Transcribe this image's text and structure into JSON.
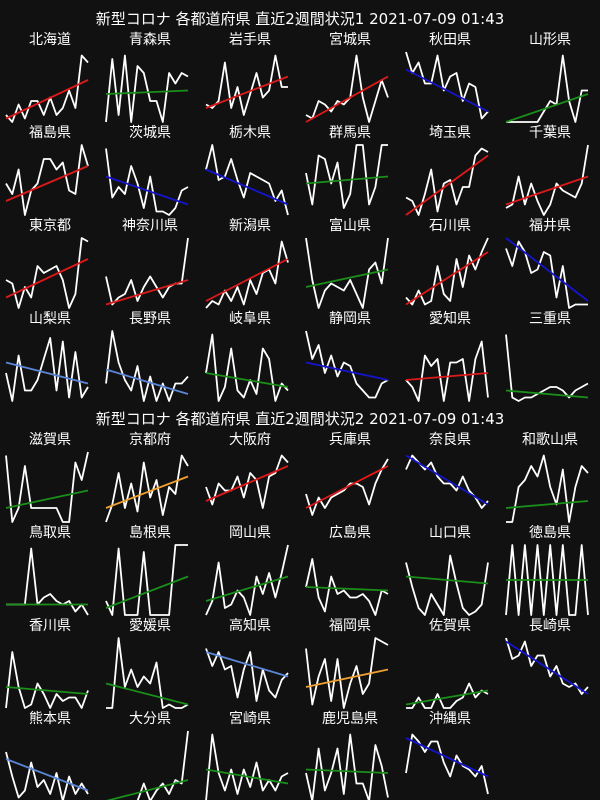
{
  "sections": [
    {
      "title": "新型コロナ 各都道府県 直近2週間状況1  2021-07-09 01:43"
    },
    {
      "title": "新型コロナ 各都道府県 直近2週間状況2  2021-07-09 01:43"
    }
  ],
  "colors": {
    "background": "#111111",
    "line": "#ffffff",
    "red": "#dd1a1a",
    "green": "#1a8f1a",
    "blue": "#1414cc",
    "lightblue": "#5b86d6",
    "orange": "#f0a030"
  },
  "chart_data": {
    "type": "line",
    "title": "",
    "xlabel": "",
    "ylabel": "",
    "grid": false,
    "legend": "none",
    "x": [
      1,
      2,
      3,
      4,
      5,
      6,
      7,
      8,
      9,
      10,
      11,
      12,
      13,
      14
    ],
    "panels": [
      {
        "name": "北海道",
        "trend": "red",
        "values": [
          0.1,
          0.0,
          0.25,
          0.05,
          0.3,
          0.3,
          0.1,
          0.35,
          0.1,
          0.2,
          0.45,
          0.2,
          0.95,
          0.85
        ],
        "trend_line": [
          0.05,
          0.6
        ]
      },
      {
        "name": "青森県",
        "trend": "green",
        "values": [
          0.0,
          0.9,
          0.1,
          0.95,
          0.0,
          0.8,
          0.7,
          0.3,
          0.3,
          0.0,
          0.7,
          0.55,
          0.7,
          0.65
        ],
        "trend_line": [
          0.4,
          0.45
        ]
      },
      {
        "name": "岩手県",
        "trend": "red",
        "values": [
          0.25,
          0.2,
          0.3,
          0.85,
          0.2,
          0.5,
          0.1,
          0.4,
          0.7,
          0.35,
          0.45,
          0.95,
          0.5,
          0.5
        ],
        "trend_line": [
          0.2,
          0.65
        ]
      },
      {
        "name": "宮城県",
        "trend": "red",
        "values": [
          0.1,
          0.05,
          0.3,
          0.25,
          0.15,
          0.3,
          0.25,
          0.35,
          0.95,
          0.35,
          0.0,
          0.3,
          0.6,
          0.35
        ],
        "trend_line": [
          0.0,
          0.65
        ]
      },
      {
        "name": "秋田県",
        "trend": "blue",
        "values": [
          1.0,
          0.7,
          0.85,
          0.55,
          0.55,
          0.95,
          0.45,
          0.65,
          0.7,
          0.3,
          0.55,
          0.5,
          0.05,
          0.15
        ],
        "trend_line": [
          0.75,
          0.15
        ]
      },
      {
        "name": "山形県",
        "trend": "green",
        "values": [
          0.0,
          0.0,
          0.0,
          0.0,
          0.0,
          0.0,
          0.15,
          0.3,
          0.25,
          0.95,
          0.3,
          0.0,
          0.45,
          0.45
        ],
        "trend_line": [
          0.0,
          0.4
        ]
      },
      {
        "name": "福島県",
        "trend": "red",
        "values": [
          0.45,
          0.3,
          0.65,
          0.0,
          0.35,
          0.45,
          0.8,
          0.8,
          0.65,
          0.75,
          0.35,
          0.3,
          1.0,
          0.7
        ],
        "trend_line": [
          0.2,
          0.7
        ]
      },
      {
        "name": "茨城県",
        "trend": "blue",
        "values": [
          0.95,
          0.25,
          0.4,
          0.3,
          0.7,
          0.45,
          0.1,
          0.55,
          0.05,
          0.05,
          0.0,
          0.1,
          0.35,
          0.4
        ],
        "trend_line": [
          0.55,
          0.15
        ]
      },
      {
        "name": "栃木県",
        "trend": "blue",
        "values": [
          0.65,
          1.0,
          0.5,
          0.55,
          0.8,
          0.5,
          0.25,
          0.6,
          0.55,
          0.5,
          0.45,
          0.2,
          0.35,
          0.0
        ],
        "trend_line": [
          0.65,
          0.15
        ]
      },
      {
        "name": "群馬県",
        "trend": "green",
        "values": [
          0.6,
          0.15,
          0.85,
          0.8,
          0.45,
          0.75,
          0.1,
          0.3,
          1.0,
          1.0,
          0.15,
          0.4,
          1.0,
          1.0
        ],
        "trend_line": [
          0.45,
          0.55
        ]
      },
      {
        "name": "埼玉県",
        "trend": "red",
        "values": [
          0.25,
          0.2,
          0.0,
          0.3,
          0.65,
          0.05,
          0.45,
          0.5,
          0.15,
          0.4,
          0.4,
          0.85,
          0.95,
          0.9
        ],
        "trend_line": [
          0.0,
          0.85
        ]
      },
      {
        "name": "千葉県",
        "trend": "red",
        "values": [
          0.1,
          0.15,
          0.55,
          0.15,
          0.45,
          0.2,
          0.0,
          0.15,
          0.45,
          0.35,
          0.3,
          0.25,
          0.45,
          1.0
        ],
        "trend_line": [
          0.15,
          0.55
        ]
      },
      {
        "name": "東京都",
        "trend": "red",
        "values": [
          0.4,
          0.35,
          0.0,
          0.3,
          0.15,
          0.6,
          0.5,
          0.55,
          0.6,
          0.4,
          0.0,
          0.2,
          1.0,
          0.95
        ],
        "trend_line": [
          0.15,
          0.7
        ]
      },
      {
        "name": "神奈川県",
        "trend": "red",
        "values": [
          0.45,
          0.05,
          0.15,
          0.2,
          0.4,
          0.1,
          0.3,
          0.45,
          0.3,
          0.15,
          0.3,
          0.35,
          0.35,
          1.0
        ],
        "trend_line": [
          0.05,
          0.4
        ]
      },
      {
        "name": "新潟県",
        "trend": "red",
        "values": [
          0.0,
          0.1,
          0.05,
          0.25,
          0.1,
          0.3,
          0.05,
          0.4,
          0.2,
          0.5,
          0.55,
          0.35,
          0.95,
          0.65
        ],
        "trend_line": [
          0.1,
          0.7
        ]
      },
      {
        "name": "富山県",
        "trend": "green",
        "values": [
          1.0,
          0.4,
          0.0,
          0.25,
          0.35,
          0.3,
          0.25,
          0.4,
          0.2,
          0.0,
          0.55,
          0.65,
          0.35,
          1.0
        ],
        "trend_line": [
          0.3,
          0.55
        ]
      },
      {
        "name": "石川県",
        "trend": "red",
        "values": [
          0.15,
          0.05,
          0.25,
          0.05,
          0.1,
          0.6,
          0.2,
          0.1,
          0.7,
          0.3,
          0.75,
          0.55,
          0.8,
          1.0
        ],
        "trend_line": [
          0.05,
          0.8
        ]
      },
      {
        "name": "福井県",
        "trend": "blue",
        "values": [
          0.85,
          0.6,
          0.95,
          0.8,
          0.5,
          0.55,
          0.8,
          0.75,
          0.15,
          0.6,
          0.0,
          0.05,
          0.05,
          0.05
        ],
        "trend_line": [
          1.0,
          0.1
        ]
      },
      {
        "name": "山梨県",
        "trend": "lightblue",
        "values": [
          0.4,
          0.0,
          0.65,
          0.15,
          0.15,
          0.3,
          0.6,
          0.9,
          0.15,
          0.85,
          0.05,
          0.7,
          0.05,
          0.2
        ],
        "trend_line": [
          0.55,
          0.25
        ]
      },
      {
        "name": "長野県",
        "trend": "lightblue",
        "values": [
          0.25,
          1.0,
          0.55,
          0.3,
          0.15,
          0.5,
          0.0,
          0.35,
          0.0,
          0.25,
          0.0,
          0.25,
          0.25,
          0.35
        ],
        "trend_line": [
          0.45,
          0.1
        ]
      },
      {
        "name": "岐阜県",
        "trend": "green",
        "values": [
          0.4,
          0.95,
          0.0,
          0.2,
          0.75,
          0.15,
          0.05,
          0.3,
          0.1,
          0.75,
          0.6,
          0.0,
          0.25,
          0.15
        ],
        "trend_line": [
          0.4,
          0.2
        ]
      },
      {
        "name": "静岡県",
        "trend": "blue",
        "values": [
          1.0,
          0.6,
          0.8,
          0.4,
          0.65,
          0.35,
          0.55,
          0.5,
          0.25,
          0.15,
          0.05,
          0.05,
          0.25,
          0.3
        ],
        "trend_line": [
          0.55,
          0.3
        ]
      },
      {
        "name": "愛知県",
        "trend": "red",
        "values": [
          0.3,
          0.2,
          0.0,
          0.65,
          0.5,
          0.6,
          0.0,
          0.55,
          0.55,
          0.6,
          0.0,
          0.6,
          0.85,
          0.05
        ],
        "trend_line": [
          0.3,
          0.4
        ]
      },
      {
        "name": "三重県",
        "trend": "green",
        "values": [
          0.95,
          0.05,
          0.0,
          0.05,
          0.05,
          0.1,
          0.15,
          0.2,
          0.2,
          0.15,
          0.05,
          0.15,
          0.2,
          0.25
        ],
        "trend_line": [
          0.15,
          0.05
        ]
      },
      {
        "name": "滋賀県",
        "trend": "green",
        "values": [
          0.95,
          0.0,
          0.2,
          0.8,
          0.2,
          0.2,
          0.2,
          0.2,
          0.2,
          0.0,
          0.0,
          0.85,
          0.6,
          1.0
        ],
        "trend_line": [
          0.2,
          0.45
        ]
      },
      {
        "name": "京都府",
        "trend": "orange",
        "values": [
          0.0,
          0.25,
          0.7,
          0.2,
          0.55,
          0.15,
          0.85,
          0.35,
          0.6,
          0.1,
          0.5,
          0.4,
          0.95,
          0.8
        ],
        "trend_line": [
          0.2,
          0.65
        ]
      },
      {
        "name": "大阪府",
        "trend": "red",
        "values": [
          0.5,
          0.25,
          0.55,
          0.45,
          0.45,
          0.65,
          0.35,
          0.7,
          0.6,
          0.2,
          0.65,
          0.7,
          0.95,
          0.85
        ],
        "trend_line": [
          0.3,
          0.8
        ]
      },
      {
        "name": "兵庫県",
        "trend": "red",
        "values": [
          0.4,
          0.1,
          0.35,
          0.2,
          0.35,
          0.4,
          0.45,
          0.55,
          0.55,
          0.5,
          0.25,
          0.55,
          0.75,
          0.9
        ],
        "trend_line": [
          0.2,
          0.8
        ]
      },
      {
        "name": "奈良県",
        "trend": "blue",
        "values": [
          0.75,
          0.95,
          0.85,
          0.75,
          0.85,
          0.65,
          0.55,
          0.55,
          0.45,
          0.65,
          0.45,
          0.35,
          0.2,
          0.3
        ],
        "trend_line": [
          0.95,
          0.25
        ]
      },
      {
        "name": "和歌山県",
        "trend": "green",
        "values": [
          0.0,
          0.0,
          0.5,
          0.6,
          0.8,
          0.65,
          0.95,
          0.5,
          0.25,
          0.75,
          0.0,
          0.5,
          0.8,
          0.7
        ],
        "trend_line": [
          0.2,
          0.3
        ]
      },
      {
        "name": "鳥取県",
        "trend": "green",
        "values": [
          0.15,
          0.15,
          0.15,
          0.15,
          0.95,
          0.15,
          0.25,
          0.3,
          0.2,
          0.15,
          0.2,
          0.05,
          0.15,
          0.0
        ],
        "trend_line": [
          0.15,
          0.15
        ]
      },
      {
        "name": "島根県",
        "trend": "green",
        "values": [
          0.2,
          0.0,
          0.95,
          0.0,
          0.0,
          0.0,
          0.9,
          0.0,
          0.0,
          0.0,
          0.0,
          1.0,
          1.0,
          1.0
        ],
        "trend_line": [
          0.1,
          0.55
        ]
      },
      {
        "name": "岡山県",
        "trend": "green",
        "values": [
          0.0,
          0.2,
          0.75,
          0.1,
          0.15,
          0.35,
          0.25,
          0.0,
          0.55,
          0.3,
          0.6,
          0.25,
          0.6,
          1.0
        ],
        "trend_line": [
          0.2,
          0.55
        ]
      },
      {
        "name": "広島県",
        "trend": "green",
        "values": [
          0.4,
          0.8,
          0.25,
          0.05,
          0.55,
          0.3,
          0.35,
          0.25,
          0.25,
          0.3,
          0.2,
          0.0,
          0.35,
          0.3
        ],
        "trend_line": [
          0.4,
          0.35
        ]
      },
      {
        "name": "山口県",
        "trend": "green",
        "values": [
          0.75,
          0.4,
          0.1,
          0.0,
          0.3,
          0.15,
          0.0,
          0.85,
          0.45,
          0.1,
          0.0,
          0.05,
          0.15,
          0.75
        ],
        "trend_line": [
          0.55,
          0.45
        ]
      },
      {
        "name": "徳島県",
        "trend": "green",
        "values": [
          0.0,
          1.0,
          0.0,
          1.0,
          0.0,
          1.0,
          0.0,
          1.0,
          0.0,
          1.0,
          0.0,
          0.0,
          1.0,
          0.0
        ],
        "trend_line": [
          0.5,
          0.5
        ]
      },
      {
        "name": "香川県",
        "trend": "green",
        "values": [
          0.0,
          0.8,
          0.3,
          0.0,
          0.05,
          0.35,
          0.2,
          0.0,
          0.2,
          0.1,
          0.15,
          0.15,
          0.0,
          0.25
        ],
        "trend_line": [
          0.3,
          0.2
        ]
      },
      {
        "name": "愛媛県",
        "trend": "green",
        "values": [
          0.0,
          0.0,
          1.0,
          0.3,
          0.55,
          0.3,
          0.45,
          0.35,
          0.65,
          0.0,
          0.05,
          0.0,
          0.0,
          0.05
        ],
        "trend_line": [
          0.35,
          0.05
        ]
      },
      {
        "name": "高知県",
        "trend": "lightblue",
        "values": [
          0.85,
          0.6,
          0.8,
          0.55,
          0.6,
          0.15,
          0.55,
          0.8,
          0.1,
          0.55,
          0.25,
          0.15,
          0.4,
          0.5
        ],
        "trend_line": [
          0.8,
          0.45
        ]
      },
      {
        "name": "福岡県",
        "trend": "orange",
        "values": [
          0.85,
          0.05,
          0.45,
          0.7,
          0.1,
          0.7,
          0.0,
          0.35,
          0.6,
          0.2,
          0.35,
          1.0,
          0.95,
          0.9
        ],
        "trend_line": [
          0.3,
          0.55
        ]
      },
      {
        "name": "佐賀県",
        "trend": "green",
        "values": [
          0.0,
          0.0,
          0.15,
          0.0,
          0.0,
          0.2,
          0.0,
          0.0,
          0.1,
          0.15,
          0.35,
          0.15,
          0.25,
          0.2
        ],
        "trend_line": [
          0.05,
          0.25
        ]
      },
      {
        "name": "長崎県",
        "trend": "blue",
        "values": [
          1.0,
          0.7,
          0.75,
          0.95,
          0.6,
          0.75,
          0.75,
          0.45,
          0.6,
          0.35,
          0.3,
          0.35,
          0.2,
          0.3
        ],
        "trend_line": [
          0.95,
          0.2
        ]
      },
      {
        "name": "熊本県",
        "trend": "lightblue",
        "values": [
          0.7,
          0.35,
          0.05,
          0.15,
          0.55,
          0.2,
          0.3,
          0.1,
          0.4,
          0.0,
          0.35,
          0.1,
          0.25,
          0.1
        ],
        "trend_line": [
          0.6,
          0.15
        ]
      },
      {
        "name": "大分県",
        "trend": "green",
        "values": [
          0.0,
          0.0,
          0.0,
          0.0,
          0.0,
          0.0,
          0.25,
          0.0,
          0.15,
          0.25,
          0.1,
          0.3,
          0.25,
          1.0
        ],
        "trend_line": [
          0.0,
          0.3
        ]
      },
      {
        "name": "宮崎県",
        "trend": "green",
        "values": [
          0.0,
          0.95,
          0.4,
          0.15,
          0.45,
          0.1,
          0.45,
          0.2,
          0.55,
          0.15,
          0.3,
          0.15,
          0.35,
          0.4
        ],
        "trend_line": [
          0.45,
          0.25
        ]
      },
      {
        "name": "鹿児島県",
        "trend": "green",
        "values": [
          0.4,
          0.0,
          0.75,
          0.15,
          0.4,
          0.75,
          0.1,
          0.95,
          0.25,
          0.25,
          0.0,
          0.8,
          0.5,
          0.05
        ],
        "trend_line": [
          0.45,
          0.4
        ]
      },
      {
        "name": "沖縄県",
        "trend": "blue",
        "values": [
          0.4,
          0.95,
          0.85,
          0.7,
          0.85,
          0.85,
          0.55,
          0.35,
          0.65,
          0.5,
          0.45,
          0.35,
          0.5,
          0.1
        ],
        "trend_line": [
          0.9,
          0.35
        ]
      }
    ]
  }
}
